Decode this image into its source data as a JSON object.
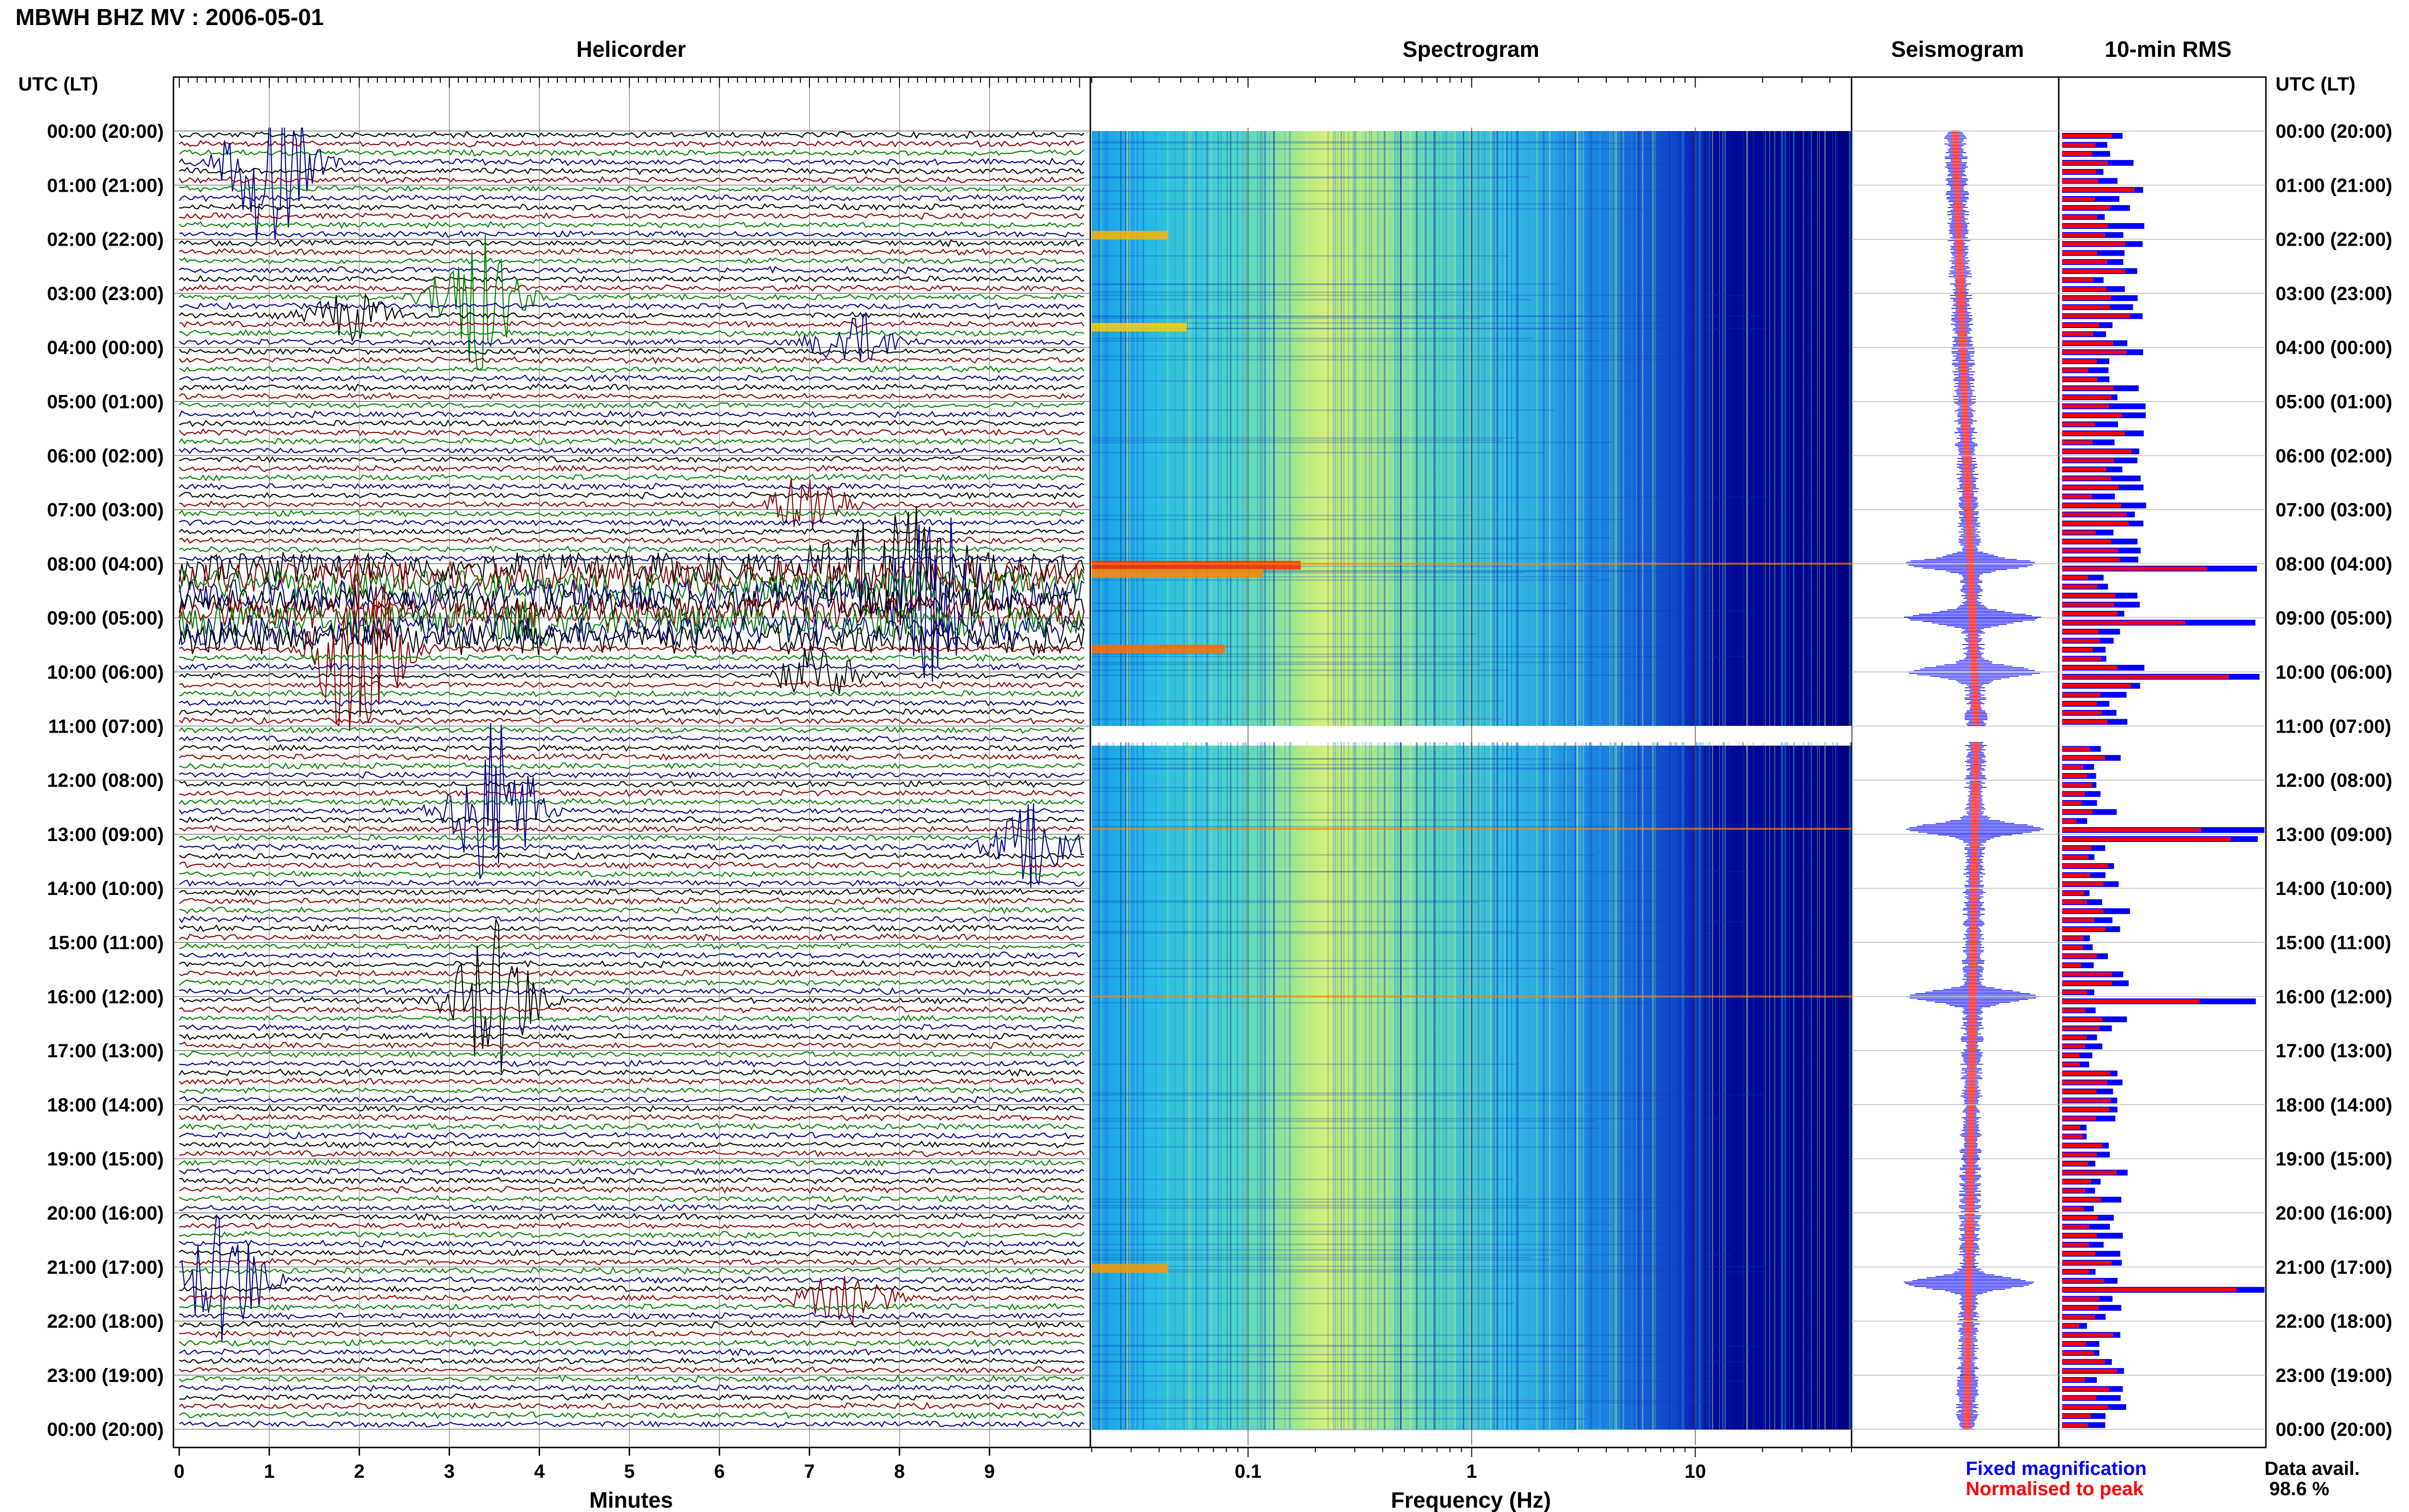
{
  "header": {
    "title": "MBWH BHZ MV : 2006-05-01",
    "utc_lt": "UTC (LT)"
  },
  "panels": {
    "helicorder": "Helicorder",
    "spectrogram": "Spectrogram",
    "seismogram": "Seismogram",
    "rms": "10-min RMS"
  },
  "time_labels": [
    "00:00 (20:00)",
    "01:00 (21:00)",
    "02:00 (22:00)",
    "03:00 (23:00)",
    "04:00 (00:00)",
    "05:00 (01:00)",
    "06:00 (02:00)",
    "07:00 (03:00)",
    "08:00 (04:00)",
    "09:00 (05:00)",
    "10:00 (06:00)",
    "11:00 (07:00)",
    "12:00 (08:00)",
    "13:00 (09:00)",
    "14:00 (10:00)",
    "15:00 (11:00)",
    "16:00 (12:00)",
    "17:00 (13:00)",
    "18:00 (14:00)",
    "19:00 (15:00)",
    "20:00 (16:00)",
    "21:00 (17:00)",
    "22:00 (18:00)",
    "23:00 (19:00)",
    "00:00 (20:00)"
  ],
  "axes": {
    "minutes_label": "Minutes",
    "minutes_ticks": [
      "0",
      "1",
      "2",
      "3",
      "4",
      "5",
      "6",
      "7",
      "8",
      "9"
    ],
    "freq_label": "Frequency (Hz)",
    "freq_ticks": [
      "0.1",
      "1",
      "10"
    ]
  },
  "legend": {
    "fixed": "Fixed magnification",
    "normalised": "Normalised to peak",
    "fixed_color": "#0000ff",
    "normalised_color": "#ff0000"
  },
  "data_avail": {
    "label": "Data avail.",
    "value": "98.6 %"
  },
  "colors": {
    "trace_cycle": [
      "#000000",
      "#8b0000",
      "#008000",
      "#00008b"
    ],
    "spectrogram_dark": "#000080",
    "rms_fixed": "#0000ff",
    "rms_normalised": "#ff0000"
  },
  "chart_data": {
    "type": "heatmap",
    "helicorder": {
      "x_unit": "minutes",
      "xlim": [
        0,
        10
      ],
      "line_minutes": 10,
      "lines": 144,
      "notable_events_hour": [
        0.5,
        3.0,
        3.8,
        6.8,
        8.0,
        8.5,
        9.0,
        9.5,
        12.5,
        13.1,
        16.0,
        21.1,
        21.5
      ]
    },
    "spectrogram": {
      "x_unit": "Hz",
      "xscale": "log",
      "xlim": [
        0.02,
        50
      ],
      "gap_hours": [
        11.0,
        11.3
      ]
    },
    "rms": {
      "interval_minutes": 10,
      "series": [
        {
          "name": "Fixed magnification",
          "color": "#0000ff"
        },
        {
          "name": "Normalised to peak",
          "color": "#ff0000"
        }
      ],
      "peak_hours": [
        8.0,
        9.0,
        10.0,
        12.9,
        16.0,
        21.3
      ]
    }
  }
}
